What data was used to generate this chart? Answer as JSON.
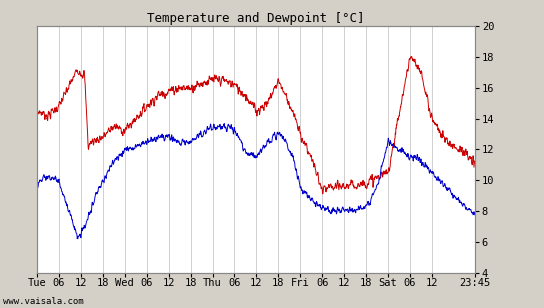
{
  "title": "Temperature and Dewpoint [°C]",
  "ylabel_right_ticks": [
    4,
    6,
    8,
    10,
    12,
    14,
    16,
    18,
    20
  ],
  "ylim": [
    4,
    20
  ],
  "background_color": "#d4d0c8",
  "plot_bg_color": "#ffffff",
  "grid_color": "#c8c8c8",
  "temp_color": "#cc0000",
  "dew_color": "#0000cc",
  "watermark": "www.vaisala.com",
  "x_tick_labels": [
    "Tue",
    "06",
    "12",
    "18",
    "Wed",
    "06",
    "12",
    "18",
    "Thu",
    "06",
    "12",
    "18",
    "Fri",
    "06",
    "12",
    "18",
    "Sat",
    "06",
    "12",
    "23:45"
  ],
  "x_tick_positions": [
    0,
    6,
    12,
    18,
    24,
    30,
    36,
    42,
    48,
    54,
    60,
    66,
    72,
    78,
    84,
    90,
    96,
    102,
    108,
    119.75
  ],
  "total_hours": 119.75
}
